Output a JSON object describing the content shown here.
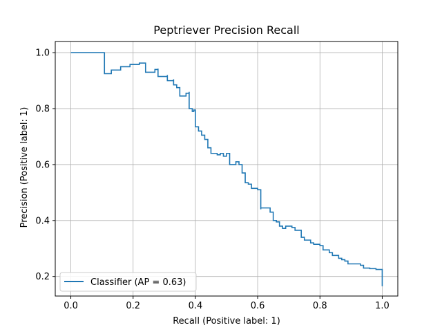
{
  "chart_data": {
    "type": "line",
    "title": "Peptriever Precision Recall",
    "xlabel": "Recall (Positive label: 1)",
    "ylabel": "Precision (Positive label: 1)",
    "xlim": [
      -0.05,
      1.05
    ],
    "ylim": [
      0.13,
      1.04
    ],
    "xticks": [
      0.0,
      0.2,
      0.4,
      0.6,
      0.8,
      1.0
    ],
    "yticks": [
      0.2,
      0.4,
      0.6,
      0.8,
      1.0
    ],
    "xtick_labels": [
      "0.0",
      "0.2",
      "0.4",
      "0.6",
      "0.8",
      "1.0"
    ],
    "ytick_labels": [
      "0.2",
      "0.4",
      "0.6",
      "0.8",
      "1.0"
    ],
    "grid": true,
    "legend": {
      "location": "lower-left"
    },
    "series": [
      {
        "name": "Classifier (AP = 0.63)",
        "color": "#1f77b4",
        "x": [
          0.0,
          0.108,
          0.108,
          0.13,
          0.16,
          0.19,
          0.22,
          0.24,
          0.24,
          0.27,
          0.28,
          0.28,
          0.31,
          0.31,
          0.33,
          0.33,
          0.34,
          0.35,
          0.35,
          0.37,
          0.38,
          0.38,
          0.39,
          0.395,
          0.4,
          0.4,
          0.41,
          0.42,
          0.43,
          0.44,
          0.44,
          0.45,
          0.45,
          0.47,
          0.48,
          0.49,
          0.5,
          0.51,
          0.51,
          0.53,
          0.54,
          0.55,
          0.55,
          0.56,
          0.57,
          0.58,
          0.6,
          0.61,
          0.61,
          0.64,
          0.65,
          0.66,
          0.67,
          0.68,
          0.69,
          0.71,
          0.72,
          0.74,
          0.75,
          0.75,
          0.77,
          0.78,
          0.8,
          0.81,
          0.83,
          0.84,
          0.86,
          0.87,
          0.88,
          0.89,
          0.9,
          0.93,
          0.94,
          0.96,
          0.98,
          1.0,
          1.0
        ],
        "y": [
          1.0,
          1.0,
          0.925,
          0.938,
          0.95,
          0.958,
          0.963,
          0.965,
          0.93,
          0.94,
          0.943,
          0.915,
          0.92,
          0.9,
          0.905,
          0.885,
          0.875,
          0.87,
          0.845,
          0.855,
          0.86,
          0.8,
          0.79,
          0.795,
          0.795,
          0.735,
          0.72,
          0.705,
          0.69,
          0.68,
          0.66,
          0.645,
          0.64,
          0.635,
          0.64,
          0.63,
          0.64,
          0.635,
          0.6,
          0.61,
          0.6,
          0.595,
          0.57,
          0.535,
          0.53,
          0.515,
          0.51,
          0.44,
          0.445,
          0.43,
          0.4,
          0.395,
          0.38,
          0.372,
          0.38,
          0.375,
          0.365,
          0.34,
          0.335,
          0.33,
          0.32,
          0.315,
          0.31,
          0.295,
          0.285,
          0.275,
          0.265,
          0.26,
          0.255,
          0.245,
          0.245,
          0.24,
          0.23,
          0.228,
          0.225,
          0.22,
          0.165
        ]
      }
    ]
  }
}
